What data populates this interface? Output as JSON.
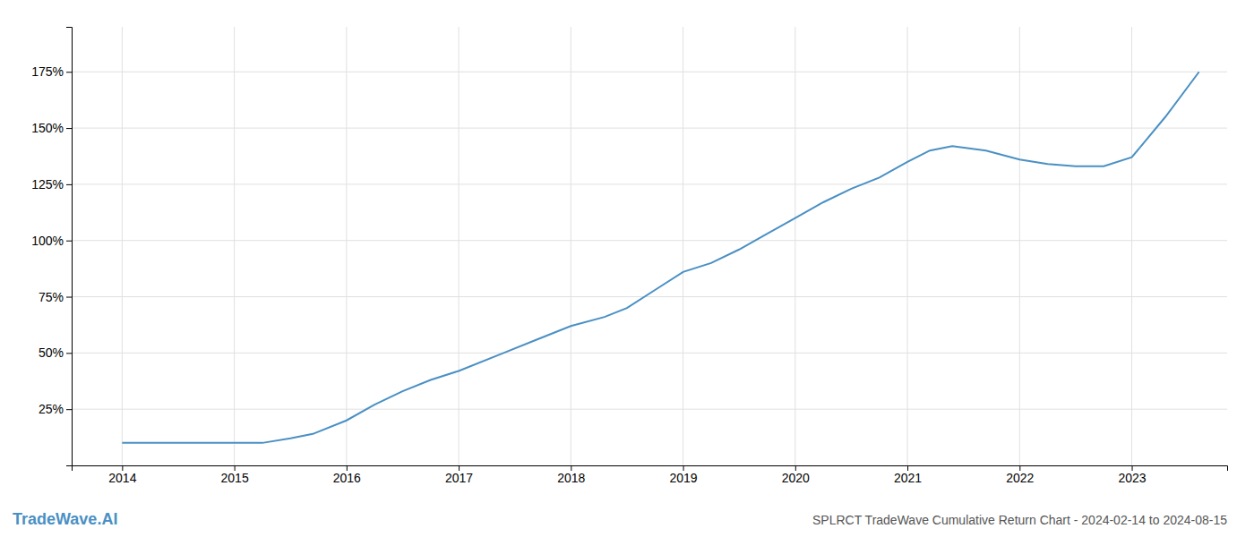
{
  "chart_data": {
    "type": "line",
    "title": "SPLRCT TradeWave Cumulative Return Chart - 2024-02-14 to 2024-08-15",
    "annotations": [
      "TradeWave.AI"
    ],
    "x": [
      2014.0,
      2014.25,
      2014.5,
      2014.75,
      2015.0,
      2015.25,
      2015.5,
      2015.7,
      2016.0,
      2016.25,
      2016.5,
      2016.75,
      2017.0,
      2017.4,
      2017.7,
      2018.0,
      2018.3,
      2018.5,
      2018.75,
      2019.0,
      2019.25,
      2019.5,
      2019.75,
      2020.0,
      2020.25,
      2020.5,
      2020.75,
      2021.0,
      2021.2,
      2021.4,
      2021.7,
      2022.0,
      2022.25,
      2022.5,
      2022.75,
      2023.0,
      2023.3,
      2023.6
    ],
    "values": [
      10,
      10,
      10,
      10,
      10,
      10,
      12,
      14,
      20,
      27,
      33,
      38,
      42,
      50,
      56,
      62,
      66,
      70,
      78,
      86,
      90,
      96,
      103,
      110,
      117,
      123,
      128,
      135,
      140,
      142,
      140,
      136,
      134,
      133,
      133,
      137,
      155,
      175
    ],
    "color": "#4a90c4",
    "xlim": [
      2013.55,
      2023.85
    ],
    "xticks": [
      2014,
      2015,
      2016,
      2017,
      2018,
      2019,
      2020,
      2021,
      2022,
      2023
    ],
    "ylim": [
      0,
      195
    ],
    "yticks": [
      {
        "value": 25,
        "label": "25%"
      },
      {
        "value": 50,
        "label": "50%"
      },
      {
        "value": 75,
        "label": "75%"
      },
      {
        "value": 100,
        "label": "100%"
      },
      {
        "value": 125,
        "label": "125%"
      },
      {
        "value": 150,
        "label": "150%"
      },
      {
        "value": 175,
        "label": "175%"
      }
    ],
    "grid": true
  }
}
